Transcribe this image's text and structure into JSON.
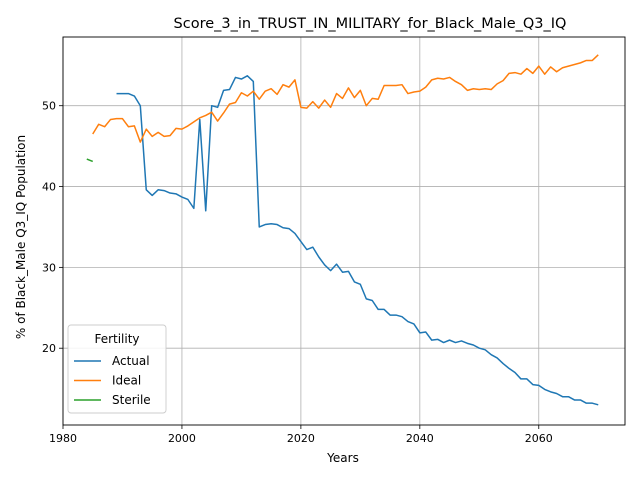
{
  "chart_data": {
    "type": "line",
    "title": "Score_3_in_TRUST_IN_MILITARY_for_Black_Male_Q3_IQ",
    "xlabel": "Years",
    "ylabel": "% of Black_Male Q3_IQ Population",
    "xlim": [
      1980,
      2074.5
    ],
    "ylim": [
      10.5,
      58.5
    ],
    "xticks": [
      1980,
      2000,
      2020,
      2040,
      2060
    ],
    "yticks": [
      20,
      30,
      40,
      50
    ],
    "grid": true,
    "legend": {
      "title": "Fertility",
      "placement": "lower-left"
    },
    "series": [
      {
        "name": "Actual",
        "color": "#1f77b4",
        "points": [
          [
            1989,
            51.5
          ],
          [
            1990,
            51.5
          ],
          [
            1991,
            51.5
          ],
          [
            1992,
            51.2
          ],
          [
            1993,
            50.0
          ],
          [
            1994,
            39.6
          ],
          [
            1995,
            38.9
          ],
          [
            1996,
            39.6
          ],
          [
            1997,
            39.5
          ],
          [
            1998,
            39.2
          ],
          [
            1999,
            39.1
          ],
          [
            2000,
            38.7
          ],
          [
            2001,
            38.4
          ],
          [
            2002,
            37.3
          ],
          [
            2003,
            48.3
          ],
          [
            2004,
            37.0
          ],
          [
            2005,
            50.0
          ],
          [
            2006,
            49.8
          ],
          [
            2007,
            51.9
          ],
          [
            2008,
            52.0
          ],
          [
            2009,
            53.5
          ],
          [
            2010,
            53.3
          ],
          [
            2011,
            53.7
          ],
          [
            2012,
            53.0
          ],
          [
            2013,
            35.0
          ],
          [
            2014,
            35.3
          ],
          [
            2015,
            35.4
          ],
          [
            2016,
            35.3
          ],
          [
            2017,
            34.9
          ],
          [
            2018,
            34.8
          ],
          [
            2019,
            34.2
          ],
          [
            2020,
            33.2
          ],
          [
            2021,
            32.2
          ],
          [
            2022,
            32.5
          ],
          [
            2023,
            31.3
          ],
          [
            2024,
            30.3
          ],
          [
            2025,
            29.6
          ],
          [
            2026,
            30.4
          ],
          [
            2027,
            29.4
          ],
          [
            2028,
            29.5
          ],
          [
            2029,
            28.2
          ],
          [
            2030,
            27.9
          ],
          [
            2031,
            26.1
          ],
          [
            2032,
            25.9
          ],
          [
            2033,
            24.8
          ],
          [
            2034,
            24.8
          ],
          [
            2035,
            24.1
          ],
          [
            2036,
            24.1
          ],
          [
            2037,
            23.9
          ],
          [
            2038,
            23.3
          ],
          [
            2039,
            23.0
          ],
          [
            2040,
            21.9
          ],
          [
            2041,
            22.0
          ],
          [
            2042,
            21.0
          ],
          [
            2043,
            21.1
          ],
          [
            2044,
            20.7
          ],
          [
            2045,
            21.0
          ],
          [
            2046,
            20.7
          ],
          [
            2047,
            20.9
          ],
          [
            2048,
            20.6
          ],
          [
            2049,
            20.4
          ],
          [
            2050,
            20.0
          ],
          [
            2051,
            19.8
          ],
          [
            2052,
            19.2
          ],
          [
            2053,
            18.8
          ],
          [
            2054,
            18.1
          ],
          [
            2055,
            17.5
          ],
          [
            2056,
            17.0
          ],
          [
            2057,
            16.2
          ],
          [
            2058,
            16.2
          ],
          [
            2059,
            15.5
          ],
          [
            2060,
            15.4
          ],
          [
            2061,
            14.9
          ],
          [
            2062,
            14.6
          ],
          [
            2063,
            14.4
          ],
          [
            2064,
            14.0
          ],
          [
            2065,
            14.0
          ],
          [
            2066,
            13.6
          ],
          [
            2067,
            13.6
          ],
          [
            2068,
            13.2
          ],
          [
            2069,
            13.2
          ],
          [
            2070,
            13.0
          ]
        ]
      },
      {
        "name": "Ideal",
        "color": "#ff7f0e",
        "points": [
          [
            1985,
            46.5
          ],
          [
            1986,
            47.7
          ],
          [
            1987,
            47.4
          ],
          [
            1988,
            48.3
          ],
          [
            1989,
            48.4
          ],
          [
            1990,
            48.4
          ],
          [
            1991,
            47.4
          ],
          [
            1992,
            47.5
          ],
          [
            1993,
            45.5
          ],
          [
            1994,
            47.1
          ],
          [
            1995,
            46.2
          ],
          [
            1996,
            46.7
          ],
          [
            1997,
            46.2
          ],
          [
            1998,
            46.3
          ],
          [
            1999,
            47.2
          ],
          [
            2000,
            47.1
          ],
          [
            2001,
            47.5
          ],
          [
            2002,
            48.0
          ],
          [
            2003,
            48.5
          ],
          [
            2004,
            48.8
          ],
          [
            2005,
            49.2
          ],
          [
            2006,
            48.1
          ],
          [
            2007,
            49.1
          ],
          [
            2008,
            50.2
          ],
          [
            2009,
            50.4
          ],
          [
            2010,
            51.6
          ],
          [
            2011,
            51.2
          ],
          [
            2012,
            51.8
          ],
          [
            2013,
            50.8
          ],
          [
            2014,
            51.8
          ],
          [
            2015,
            52.1
          ],
          [
            2016,
            51.4
          ],
          [
            2017,
            52.6
          ],
          [
            2018,
            52.3
          ],
          [
            2019,
            53.2
          ],
          [
            2020,
            49.8
          ],
          [
            2021,
            49.7
          ],
          [
            2022,
            50.5
          ],
          [
            2023,
            49.7
          ],
          [
            2024,
            50.7
          ],
          [
            2025,
            49.8
          ],
          [
            2026,
            51.5
          ],
          [
            2027,
            50.9
          ],
          [
            2028,
            52.2
          ],
          [
            2029,
            51.0
          ],
          [
            2030,
            51.9
          ],
          [
            2031,
            50.0
          ],
          [
            2032,
            50.9
          ],
          [
            2033,
            50.8
          ],
          [
            2034,
            52.5
          ],
          [
            2035,
            52.5
          ],
          [
            2036,
            52.5
          ],
          [
            2037,
            52.6
          ],
          [
            2038,
            51.5
          ],
          [
            2039,
            51.7
          ],
          [
            2040,
            51.8
          ],
          [
            2041,
            52.3
          ],
          [
            2042,
            53.2
          ],
          [
            2043,
            53.4
          ],
          [
            2044,
            53.3
          ],
          [
            2045,
            53.5
          ],
          [
            2046,
            53.0
          ],
          [
            2047,
            52.6
          ],
          [
            2048,
            51.9
          ],
          [
            2049,
            52.1
          ],
          [
            2050,
            52.0
          ],
          [
            2051,
            52.1
          ],
          [
            2052,
            52.0
          ],
          [
            2053,
            52.7
          ],
          [
            2054,
            53.1
          ],
          [
            2055,
            54.0
          ],
          [
            2056,
            54.1
          ],
          [
            2057,
            53.9
          ],
          [
            2058,
            54.6
          ],
          [
            2059,
            54.0
          ],
          [
            2060,
            54.9
          ],
          [
            2061,
            53.9
          ],
          [
            2062,
            54.8
          ],
          [
            2063,
            54.2
          ],
          [
            2064,
            54.7
          ],
          [
            2065,
            54.9
          ],
          [
            2066,
            55.1
          ],
          [
            2067,
            55.3
          ],
          [
            2068,
            55.6
          ],
          [
            2069,
            55.6
          ],
          [
            2070,
            56.3
          ]
        ]
      },
      {
        "name": "Sterile",
        "color": "#2ca02c",
        "points": [
          [
            1984,
            43.4
          ],
          [
            1985,
            43.1
          ]
        ]
      }
    ]
  }
}
